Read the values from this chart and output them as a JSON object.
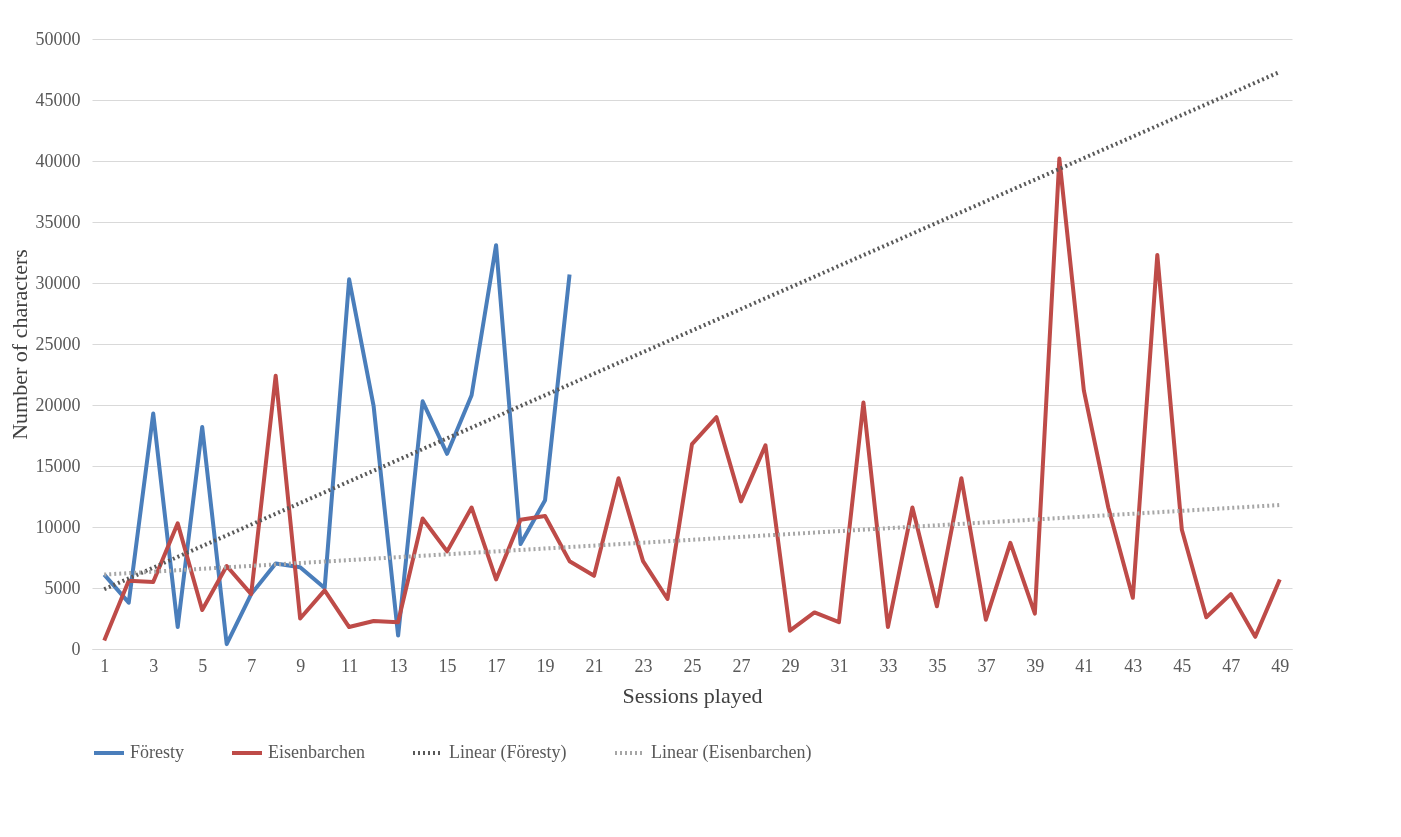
{
  "chart_data": {
    "type": "line",
    "xlabel": "Sessions played",
    "ylabel": "Number of characters",
    "xlim": [
      0.5,
      49.5
    ],
    "xticks": [
      1,
      3,
      5,
      7,
      9,
      11,
      13,
      15,
      17,
      19,
      21,
      23,
      25,
      27,
      29,
      31,
      33,
      35,
      37,
      39,
      41,
      43,
      45,
      47,
      49
    ],
    "ylim": [
      0,
      50000
    ],
    "yticks": [
      0,
      5000,
      10000,
      15000,
      20000,
      25000,
      30000,
      35000,
      40000,
      45000,
      50000
    ],
    "grid": "y",
    "legend": "bottom",
    "marker": "none",
    "series": [
      {
        "name": "Föresty",
        "color": "#4a7ebb",
        "line_style": "solid",
        "x": [
          1,
          2,
          3,
          4,
          5,
          6,
          7,
          8,
          9,
          10,
          11,
          12,
          13,
          14,
          15,
          16,
          17,
          18,
          19,
          20
        ],
        "values": [
          6100,
          3800,
          19300,
          1800,
          18200,
          400,
          4500,
          7000,
          6700,
          5000,
          30300,
          19900,
          1100,
          20300,
          16000,
          20800,
          33100,
          8600,
          12200,
          30700
        ]
      },
      {
        "name": "Eisenbarchen",
        "color": "#be4b48",
        "line_style": "solid",
        "x": [
          1,
          2,
          3,
          4,
          5,
          6,
          7,
          8,
          9,
          10,
          11,
          12,
          13,
          14,
          15,
          16,
          17,
          18,
          19,
          20,
          21,
          22,
          23,
          24,
          25,
          26,
          27,
          28,
          29,
          30,
          31,
          32,
          33,
          34,
          35,
          36,
          37,
          38,
          39,
          40,
          41,
          42,
          43,
          44,
          45,
          46,
          47,
          48,
          49
        ],
        "values": [
          700,
          5600,
          5500,
          10300,
          3200,
          6800,
          4500,
          22400,
          2500,
          4800,
          1800,
          2300,
          2200,
          10700,
          8000,
          11600,
          5700,
          10600,
          10900,
          7200,
          6000,
          14000,
          7200,
          4100,
          16800,
          19000,
          12100,
          16700,
          1500,
          3000,
          2200,
          20200,
          1800,
          11600,
          3500,
          14000,
          2400,
          8700,
          2900,
          40200,
          21200,
          11600,
          4200,
          32300,
          9800,
          2600,
          4500,
          1000,
          5700
        ]
      },
      {
        "name": "Linear (Föresty)",
        "color": "#595959",
        "line_style": "dotted",
        "x": [
          1,
          49
        ],
        "values": [
          4900,
          47300
        ]
      },
      {
        "name": "Linear (Eisenbarchen)",
        "color": "#a6a6a6",
        "line_style": "dotted",
        "x": [
          1,
          49
        ],
        "values": [
          6100,
          11800
        ]
      }
    ]
  }
}
